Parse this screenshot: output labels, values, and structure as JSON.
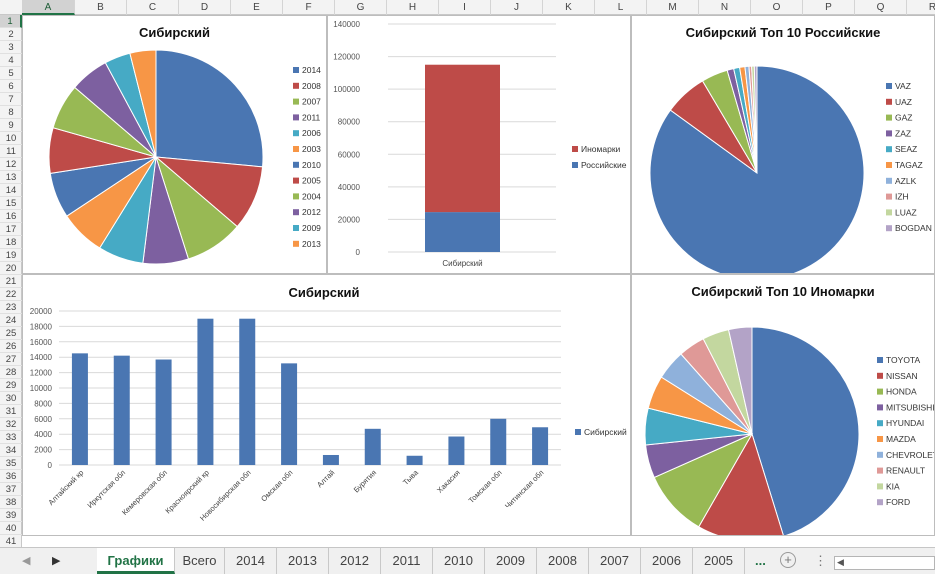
{
  "columns": [
    "A",
    "B",
    "C",
    "D",
    "E",
    "F",
    "G",
    "H",
    "I",
    "J",
    "K",
    "L",
    "M",
    "N",
    "O",
    "P",
    "Q",
    "R"
  ],
  "rows": [
    "1",
    "2",
    "3",
    "4",
    "5",
    "6",
    "7",
    "8",
    "9",
    "10",
    "11",
    "12",
    "13",
    "14",
    "15",
    "16",
    "17",
    "18",
    "19",
    "20",
    "21",
    "22",
    "23",
    "24",
    "25",
    "26",
    "27",
    "28",
    "29",
    "30",
    "31",
    "32",
    "33",
    "34",
    "35",
    "36",
    "37",
    "38",
    "39",
    "40",
    "41"
  ],
  "selected_cell": "A1",
  "tabs": [
    "Графики",
    "Всего",
    "2014",
    "2013",
    "2012",
    "2011",
    "2010",
    "2009",
    "2008",
    "2007",
    "2006",
    "2005"
  ],
  "active_tab": "Графики",
  "more_tabs": "...",
  "add_sheet": "+",
  "more_icon": "⋮",
  "colors": [
    "#4a76b2",
    "#be4b48",
    "#98b954",
    "#7d60a0",
    "#46aac5",
    "#f79646",
    "#8fb1db",
    "#df9997",
    "#c3d79f",
    "#b3a3c7"
  ],
  "chart_data": [
    {
      "type": "pie",
      "title": "Сибирский",
      "legend_position": "right",
      "categories": [
        "2014",
        "2008",
        "2007",
        "2011",
        "2006",
        "2003",
        "2010",
        "2005",
        "2004",
        "2012",
        "2009",
        "2013"
      ],
      "values": [
        27,
        10,
        9,
        7,
        7,
        7,
        7,
        7,
        7,
        6,
        4,
        4
      ],
      "colors": [
        "#4a76b2",
        "#be4b48",
        "#98b954",
        "#7d60a0",
        "#46aac5",
        "#f79646",
        "#4a76b2",
        "#be4b48",
        "#98b954",
        "#7d60a0",
        "#46aac5",
        "#f79646"
      ]
    },
    {
      "type": "bar",
      "stacked": true,
      "title": "",
      "categories": [
        "Сибирский"
      ],
      "series": [
        {
          "name": "Иномарки",
          "values": [
            90500
          ],
          "color": "#be4b48"
        },
        {
          "name": "Российские",
          "values": [
            24500
          ],
          "color": "#4a76b2"
        }
      ],
      "ylim": [
        0,
        140000
      ],
      "yticks": [
        0,
        20000,
        40000,
        60000,
        80000,
        100000,
        120000,
        140000
      ],
      "legend_position": "right"
    },
    {
      "type": "pie",
      "title": "Сибирский Топ 10 Российские",
      "legend_position": "right",
      "categories": [
        "VAZ",
        "UAZ",
        "GAZ",
        "ZAZ",
        "SEAZ",
        "TAGAZ",
        "AZLK",
        "IZH",
        "LUAZ",
        "BOGDAN"
      ],
      "values": [
        85,
        6.5,
        4,
        1,
        0.9,
        0.8,
        0.6,
        0.4,
        0.4,
        0.4
      ],
      "colors": [
        "#4a76b2",
        "#be4b48",
        "#98b954",
        "#7d60a0",
        "#46aac5",
        "#f79646",
        "#8fb1db",
        "#df9997",
        "#c3d79f",
        "#b3a3c7"
      ]
    },
    {
      "type": "bar",
      "title": "Сибирский",
      "categories": [
        "Алтайский кр",
        "Иркутская обл",
        "Кемеровская обл",
        "Красноярский кр",
        "Новосибирская обл",
        "Омская обл",
        "Алтай",
        "Бурятия",
        "Тыва",
        "Хакасия",
        "Томская обл",
        "Читинская обл"
      ],
      "series": [
        {
          "name": "Сибирский",
          "values": [
            14500,
            14200,
            13700,
            19000,
            19000,
            13200,
            1300,
            4700,
            1200,
            3700,
            6000,
            4900
          ],
          "color": "#4a76b2"
        }
      ],
      "ylim": [
        0,
        20000
      ],
      "yticks": [
        0,
        2000,
        4000,
        6000,
        8000,
        10000,
        12000,
        14000,
        16000,
        18000,
        20000
      ],
      "legend_position": "right"
    },
    {
      "type": "pie",
      "title": "Сибирский Топ 10 Иномарки",
      "legend_position": "right",
      "categories": [
        "TOYOTA",
        "NISSAN",
        "HONDA",
        "MITSUBISHI",
        "HYUNDAI",
        "MAZDA",
        "CHEVROLET",
        "RENAULT",
        "KIA",
        "FORD"
      ],
      "values": [
        45,
        13,
        10,
        5,
        5.5,
        5,
        4.5,
        4,
        4,
        3.5
      ],
      "colors": [
        "#4a76b2",
        "#be4b48",
        "#98b954",
        "#7d60a0",
        "#46aac5",
        "#f79646",
        "#8fb1db",
        "#df9997",
        "#c3d79f",
        "#b3a3c7"
      ]
    }
  ]
}
